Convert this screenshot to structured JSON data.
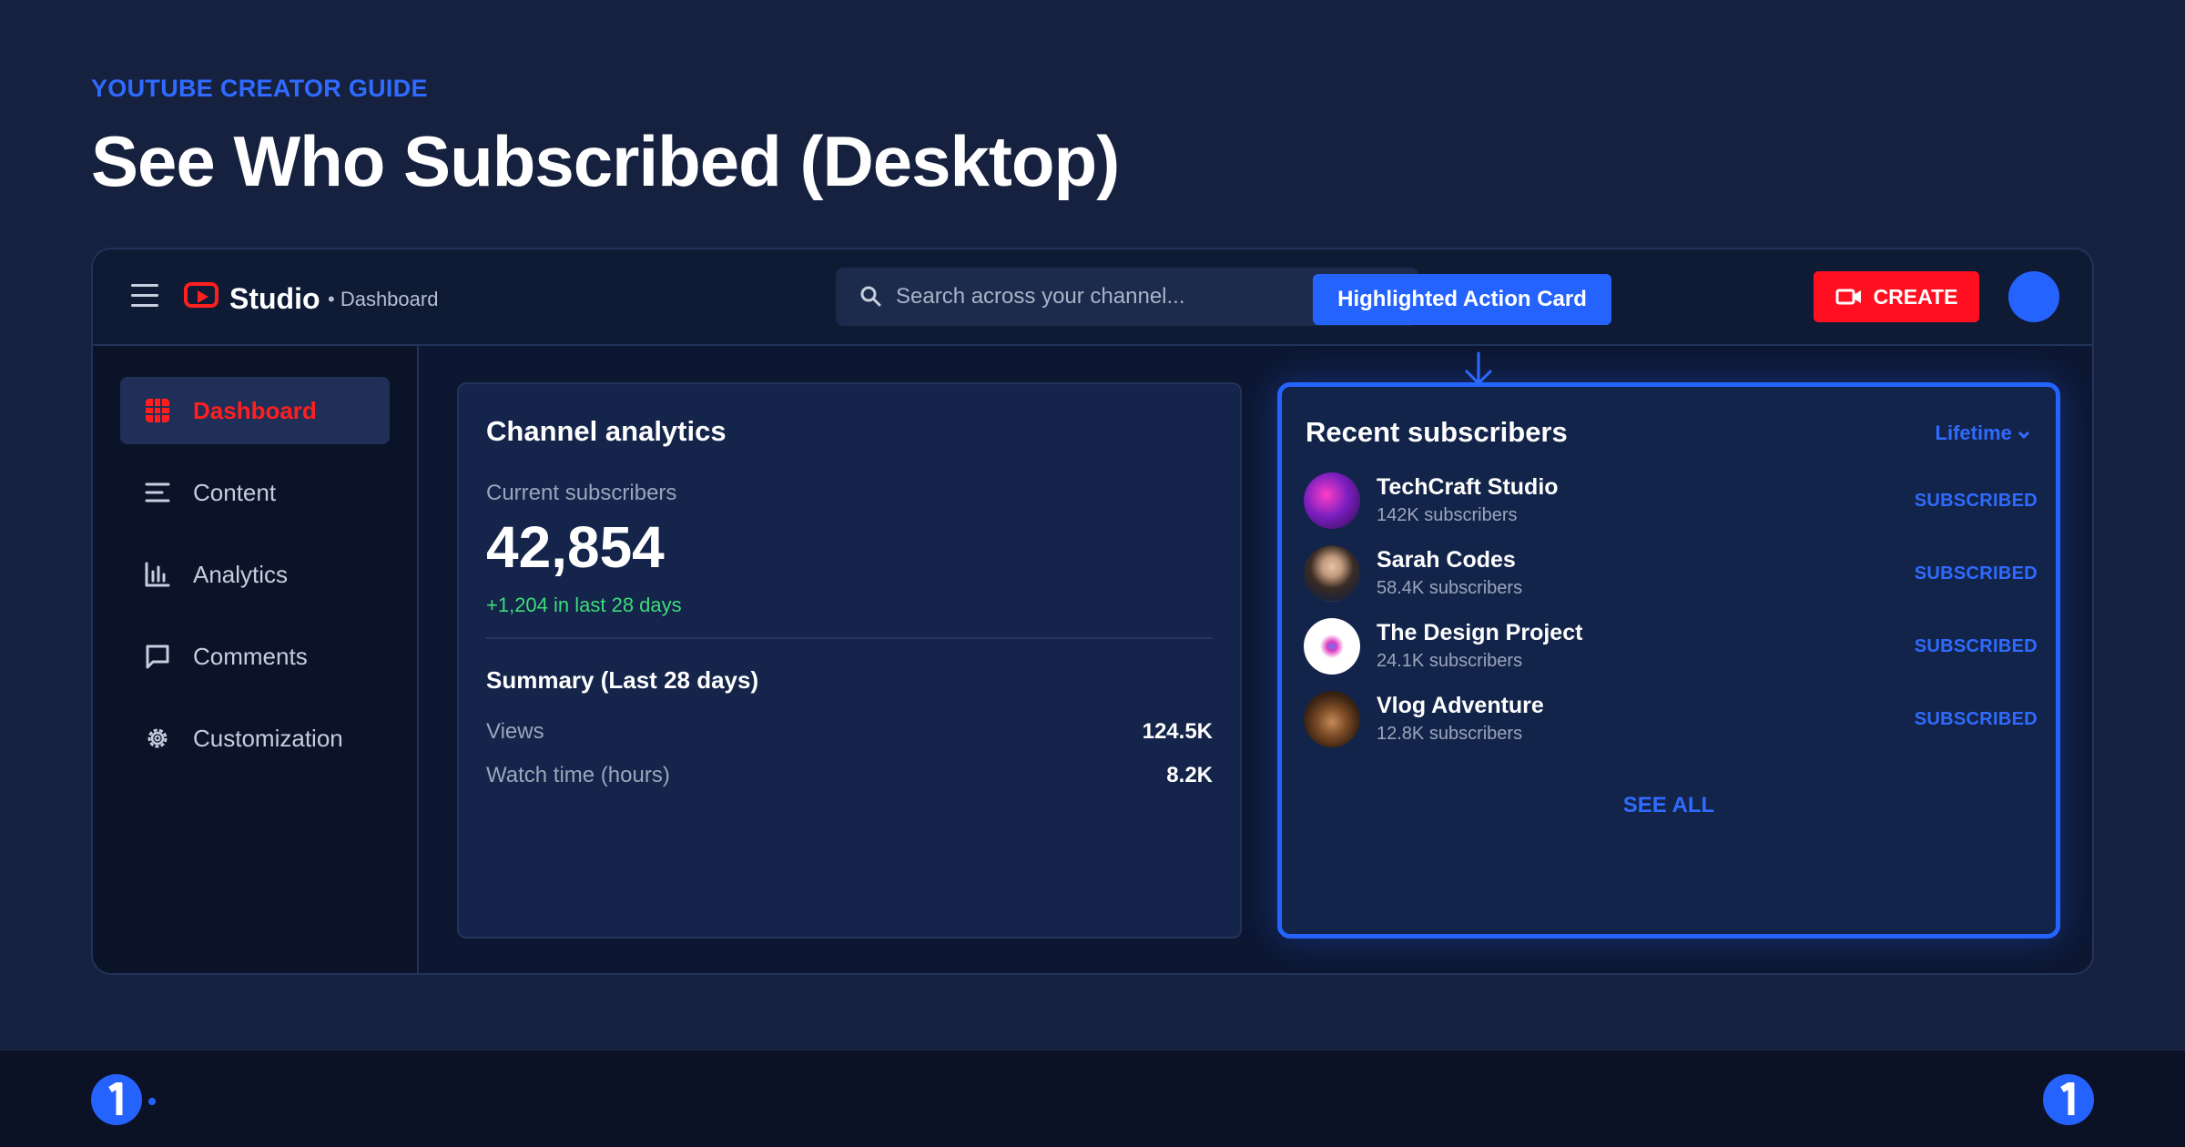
{
  "header": {
    "guide_label": "YOUTUBE CREATOR GUIDE",
    "title": "See Who Subscribed (Desktop)"
  },
  "topbar": {
    "app_name": "Studio",
    "breadcrumb": "• Dashboard",
    "search_placeholder": "Search across your channel...",
    "callout": "Highlighted Action Card",
    "create_label": "CREATE",
    "brand_color": "#ff0f1f",
    "accent_color": "#2563ff"
  },
  "sidebar": {
    "items": [
      {
        "label": "Dashboard",
        "icon": "dashboard-grid-icon",
        "active": true
      },
      {
        "label": "Content",
        "icon": "content-list-icon"
      },
      {
        "label": "Analytics",
        "icon": "bar-chart-icon"
      },
      {
        "label": "Comments",
        "icon": "comment-icon"
      },
      {
        "label": "Customization",
        "icon": "gear-icon"
      }
    ]
  },
  "analytics": {
    "title": "Channel analytics",
    "current_label": "Current subscribers",
    "current_value": "42,854",
    "delta": "+1,204 in last 28 days",
    "summary_title": "Summary (Last 28 days)",
    "rows": [
      {
        "label": "Views",
        "value": "124.5K"
      },
      {
        "label": "Watch time (hours)",
        "value": "8.2K"
      }
    ]
  },
  "subscribers": {
    "title": "Recent subscribers",
    "filter": "Lifetime",
    "see_all": "SEE ALL",
    "items": [
      {
        "name": "TechCraft Studio",
        "count": "142K subscribers",
        "status": "SUBSCRIBED"
      },
      {
        "name": "Sarah Codes",
        "count": "58.4K subscribers",
        "status": "SUBSCRIBED"
      },
      {
        "name": "The Design Project",
        "count": "24.1K subscribers",
        "status": "SUBSCRIBED"
      },
      {
        "name": "Vlog Adventure",
        "count": "12.8K subscribers",
        "status": "SUBSCRIBED"
      }
    ]
  }
}
